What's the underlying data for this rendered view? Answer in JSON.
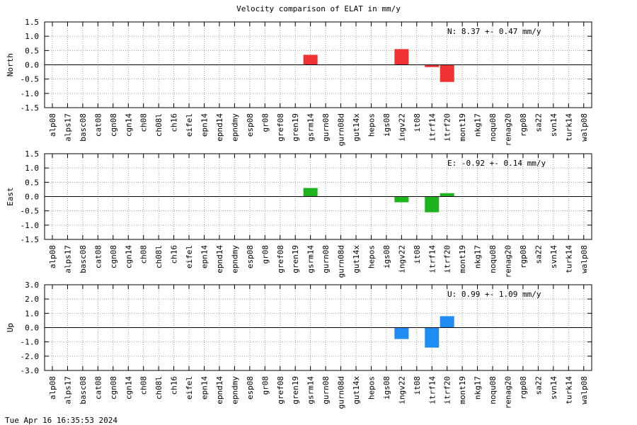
{
  "chart_data": {
    "type": "bar",
    "title": "Velocity comparison of ELAT in mm/y",
    "timestamp": "Tue Apr 16 16:35:53 2024",
    "categories": [
      "alp08",
      "alps17",
      "basc08",
      "cat08",
      "cgn08",
      "cgn14",
      "ch08",
      "ch08l",
      "ch16",
      "eifel",
      "epn14",
      "epnd14",
      "epndmy",
      "esp08",
      "gr08",
      "gref08",
      "gren19",
      "gsrm14",
      "gurn08",
      "gurn08d",
      "gut14x",
      "hepos",
      "igs08",
      "ingv22",
      "it08",
      "itrf14",
      "itrf20",
      "mont19",
      "nkg17",
      "noqu08",
      "renag20",
      "rgp08",
      "sa22",
      "svn14",
      "turk14",
      "walp08"
    ],
    "grid": true,
    "panels": [
      {
        "ylabel": "North",
        "ylim": [
          -1.5,
          1.5
        ],
        "yticks": [
          "1.5",
          "1.0",
          "0.5",
          "0.0",
          "-0.5",
          "-1.0",
          "-1.5"
        ],
        "color": "#f03232",
        "annotation": "N:   8.37 +-  0.47 mm/y",
        "values": [
          null,
          null,
          null,
          null,
          null,
          null,
          null,
          null,
          null,
          null,
          null,
          null,
          null,
          null,
          null,
          null,
          null,
          0.35,
          null,
          null,
          null,
          null,
          null,
          0.55,
          null,
          -0.08,
          -0.6,
          null,
          null,
          null,
          null,
          null,
          null,
          null,
          null,
          null
        ]
      },
      {
        "ylabel": "East",
        "ylim": [
          -1.5,
          1.5
        ],
        "yticks": [
          "1.5",
          "1.0",
          "0.5",
          "0.0",
          "-0.5",
          "-1.0",
          "-1.5"
        ],
        "color": "#1eb41e",
        "annotation": "E:  -0.92 +-  0.14 mm/y",
        "values": [
          null,
          null,
          null,
          null,
          null,
          null,
          null,
          null,
          null,
          null,
          null,
          null,
          null,
          null,
          null,
          null,
          null,
          0.3,
          null,
          null,
          null,
          null,
          null,
          -0.2,
          null,
          -0.55,
          0.12,
          null,
          null,
          null,
          null,
          null,
          null,
          null,
          null,
          null
        ]
      },
      {
        "ylabel": "Up",
        "ylim": [
          -3.0,
          3.0
        ],
        "yticks": [
          "3.0",
          "2.0",
          "1.0",
          "0.0",
          "-1.0",
          "-2.0",
          "-3.0"
        ],
        "color": "#1e8cf0",
        "annotation": "U:   0.99 +-  1.09 mm/y",
        "values": [
          null,
          null,
          null,
          null,
          null,
          null,
          null,
          null,
          null,
          null,
          null,
          null,
          null,
          null,
          null,
          null,
          null,
          null,
          null,
          null,
          null,
          null,
          null,
          -0.8,
          null,
          -1.4,
          0.8,
          null,
          null,
          null,
          null,
          null,
          null,
          null,
          null,
          null
        ]
      }
    ]
  }
}
